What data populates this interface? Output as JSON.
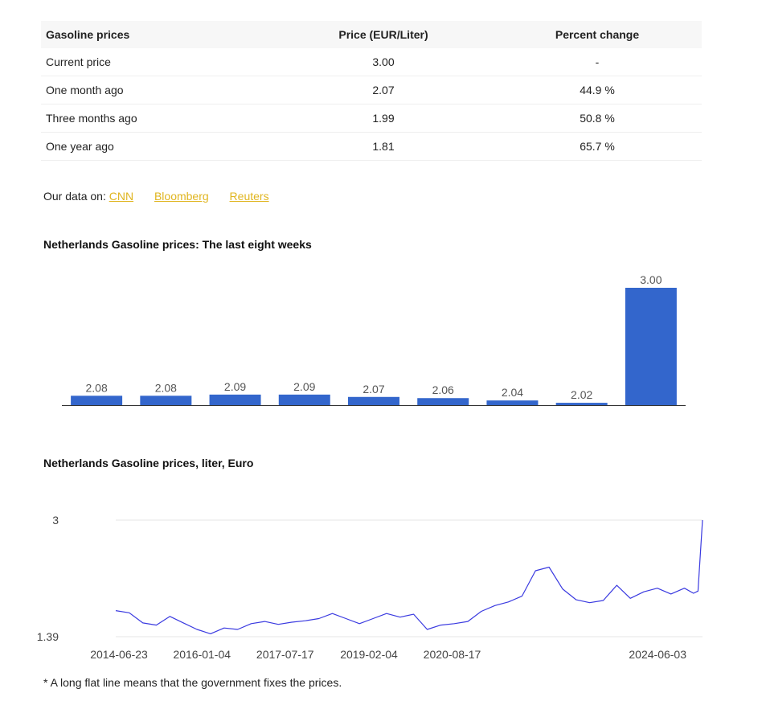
{
  "table": {
    "headers": [
      "Gasoline prices",
      "Price (EUR/Liter)",
      "Percent change"
    ],
    "rows": [
      [
        "Current price",
        "3.00",
        "-"
      ],
      [
        "One month ago",
        "2.07",
        "44.9 %"
      ],
      [
        "Three months ago",
        "1.99",
        "50.8 %"
      ],
      [
        "One year ago",
        "1.81",
        "65.7 %"
      ]
    ]
  },
  "sources": {
    "prefix": "Our data on:",
    "links": [
      "CNN",
      "Bloomberg",
      "Reuters"
    ],
    "link_color": "#e0b51f"
  },
  "footnote": "* A long flat line means that the government fixes the prices.",
  "chart_data": [
    {
      "type": "bar",
      "title": "Netherlands Gasoline prices: The last eight weeks",
      "categories": [
        "",
        "",
        "",
        "",
        "",
        "",
        "",
        "",
        ""
      ],
      "values": [
        2.08,
        2.08,
        2.09,
        2.09,
        2.07,
        2.06,
        2.04,
        2.02,
        3.0
      ],
      "labels": [
        "2.08",
        "2.08",
        "2.09",
        "2.09",
        "2.07",
        "2.06",
        "2.04",
        "2.02",
        "3.00"
      ],
      "ylim": [
        2.0,
        3.0
      ],
      "bar_color": "#3366cc",
      "grid": false
    },
    {
      "type": "line",
      "title": "Netherlands Gasoline prices, liter, Euro",
      "xlabel": "",
      "ylabel": "",
      "x_ticks": [
        "2014-06-23",
        "2016-01-04",
        "2017-07-17",
        "2019-02-04",
        "2020-08-17",
        "2024-06-03"
      ],
      "y_ticks": [
        "3",
        "1.39"
      ],
      "ylim": [
        1.39,
        3.0
      ],
      "line_color": "#3a3ae0",
      "grid": true,
      "series": [
        {
          "x": [
            "2014-06",
            "2014-09",
            "2014-12",
            "2015-03",
            "2015-06",
            "2015-09",
            "2015-12",
            "2016-03",
            "2016-06",
            "2016-09",
            "2016-12",
            "2017-03",
            "2017-06",
            "2017-09",
            "2017-12",
            "2018-03",
            "2018-06",
            "2018-09",
            "2018-12",
            "2019-03",
            "2019-06",
            "2019-09",
            "2019-12",
            "2020-03",
            "2020-06",
            "2020-09",
            "2020-12",
            "2021-03",
            "2021-06",
            "2021-09",
            "2021-12",
            "2022-03",
            "2022-06",
            "2022-09",
            "2022-12",
            "2023-03",
            "2023-06",
            "2023-09",
            "2023-12",
            "2024-03",
            "2024-06",
            "2024-09",
            "2024-12",
            "2025-02",
            "2025-03",
            "2025-04"
          ],
          "values": [
            1.75,
            1.72,
            1.58,
            1.55,
            1.67,
            1.58,
            1.49,
            1.43,
            1.51,
            1.49,
            1.57,
            1.6,
            1.56,
            1.59,
            1.61,
            1.64,
            1.71,
            1.64,
            1.57,
            1.64,
            1.71,
            1.66,
            1.7,
            1.49,
            1.55,
            1.57,
            1.6,
            1.74,
            1.82,
            1.87,
            1.95,
            2.3,
            2.35,
            2.05,
            1.9,
            1.86,
            1.89,
            2.1,
            1.92,
            2.01,
            2.06,
            1.98,
            2.06,
            1.99,
            2.02,
            3.0
          ]
        }
      ]
    }
  ]
}
